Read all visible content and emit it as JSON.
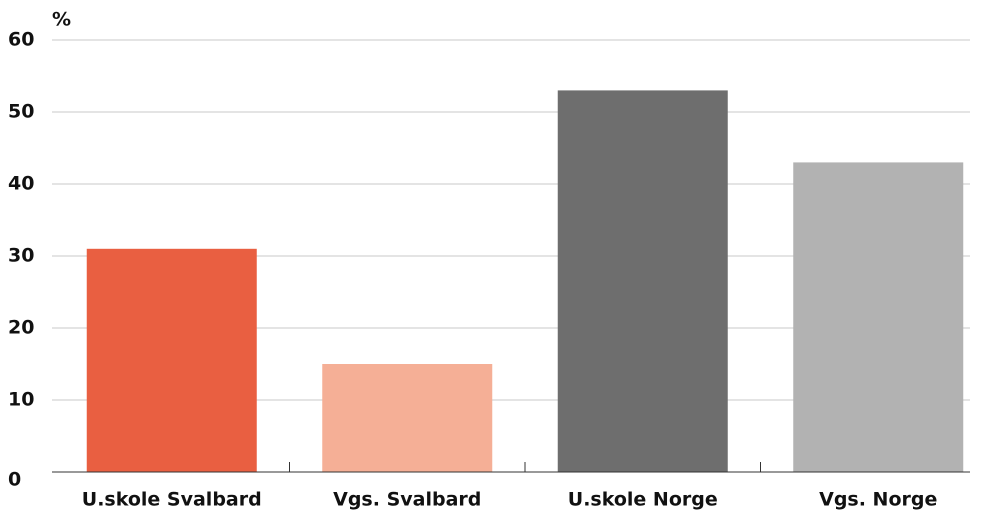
{
  "chart_data": {
    "type": "bar",
    "y_label": "%",
    "categories": [
      "U.skole Svalbard",
      "Vgs. Svalbard",
      "U.skole Norge",
      "Vgs. Norge"
    ],
    "values": [
      31,
      15,
      53,
      43
    ],
    "colors": [
      "#e95f41",
      "#f5af96",
      "#6e6e6e",
      "#b2b2b2"
    ],
    "ylim": [
      0,
      60
    ],
    "yticks": [
      0,
      10,
      20,
      30,
      40,
      50,
      60
    ],
    "grid": true
  }
}
